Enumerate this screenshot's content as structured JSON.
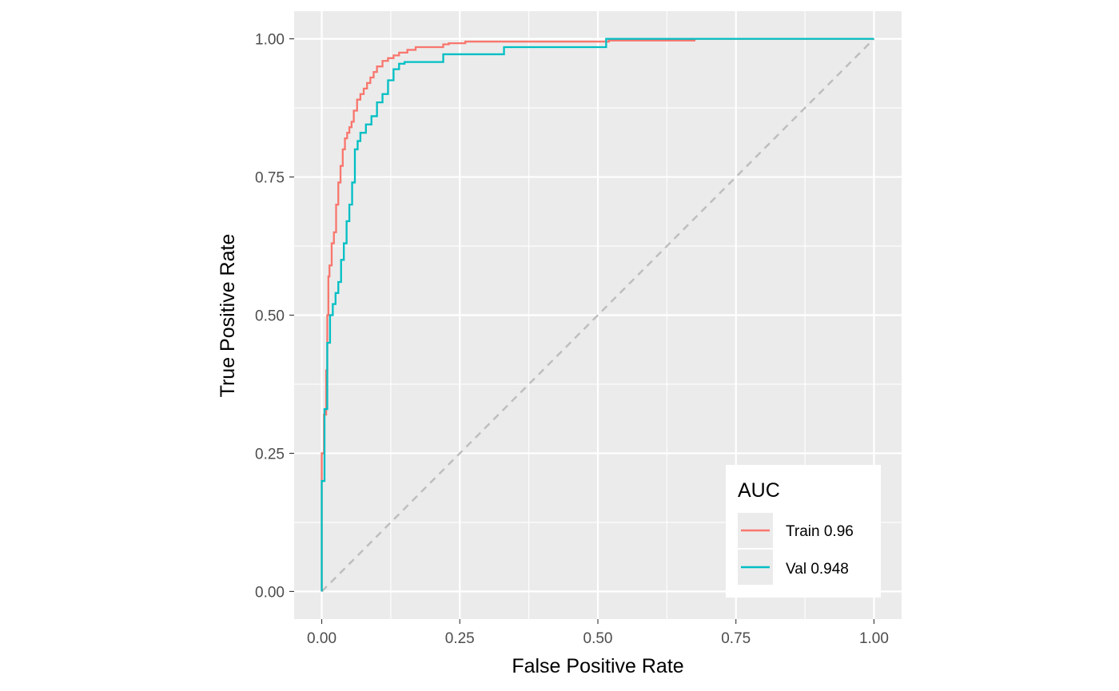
{
  "chart_data": {
    "type": "line",
    "title": "",
    "xlabel": "False Positive Rate",
    "ylabel": "True Positive Rate",
    "xlim": [
      -0.05,
      1.05
    ],
    "ylim": [
      -0.05,
      1.05
    ],
    "x_ticks": [
      0,
      0.25,
      0.5,
      0.75,
      1
    ],
    "x_tick_labels": [
      "0.00",
      "0.25",
      "0.50",
      "0.75",
      "1.00"
    ],
    "y_ticks": [
      0,
      0.25,
      0.5,
      0.75,
      1
    ],
    "y_tick_labels": [
      "0.00",
      "0.25",
      "0.50",
      "0.75",
      "1.00"
    ],
    "grid": true,
    "legend": {
      "title": "AUC",
      "position": "bottom-right"
    },
    "reference_line": {
      "x": [
        0,
        1
      ],
      "y": [
        0,
        1
      ],
      "style": "dashed",
      "color": "#bebebe"
    },
    "series": [
      {
        "name": "Train 0.96",
        "color": "#F8766D",
        "x": [
          0,
          0,
          0.004,
          0.004,
          0.008,
          0.008,
          0.01,
          0.01,
          0.012,
          0.012,
          0.014,
          0.014,
          0.018,
          0.018,
          0.022,
          0.022,
          0.026,
          0.026,
          0.03,
          0.03,
          0.034,
          0.034,
          0.038,
          0.038,
          0.042,
          0.042,
          0.046,
          0.046,
          0.05,
          0.05,
          0.054,
          0.054,
          0.058,
          0.058,
          0.064,
          0.064,
          0.07,
          0.07,
          0.076,
          0.076,
          0.082,
          0.082,
          0.088,
          0.088,
          0.094,
          0.094,
          0.1,
          0.1,
          0.11,
          0.11,
          0.12,
          0.12,
          0.13,
          0.13,
          0.14,
          0.14,
          0.155,
          0.155,
          0.17,
          0.17,
          0.22,
          0.22,
          0.23,
          0.23,
          0.26,
          0.26,
          0.52,
          0.52,
          0.675,
          0.675,
          1.0
        ],
        "y": [
          0,
          0.25,
          0.25,
          0.32,
          0.32,
          0.4,
          0.4,
          0.5,
          0.5,
          0.57,
          0.57,
          0.59,
          0.59,
          0.63,
          0.63,
          0.65,
          0.65,
          0.7,
          0.7,
          0.74,
          0.74,
          0.77,
          0.77,
          0.8,
          0.8,
          0.82,
          0.82,
          0.83,
          0.83,
          0.84,
          0.84,
          0.85,
          0.85,
          0.87,
          0.87,
          0.89,
          0.89,
          0.9,
          0.9,
          0.91,
          0.91,
          0.92,
          0.92,
          0.93,
          0.93,
          0.94,
          0.94,
          0.95,
          0.95,
          0.96,
          0.96,
          0.965,
          0.965,
          0.97,
          0.97,
          0.975,
          0.975,
          0.98,
          0.98,
          0.985,
          0.985,
          0.99,
          0.99,
          0.992,
          0.992,
          0.995,
          0.995,
          0.997,
          0.997,
          1.0,
          1.0
        ]
      },
      {
        "name": "Val 0.948",
        "color": "#00BFC4",
        "x": [
          0,
          0,
          0.005,
          0.005,
          0.01,
          0.01,
          0.015,
          0.015,
          0.02,
          0.02,
          0.025,
          0.025,
          0.03,
          0.03,
          0.035,
          0.035,
          0.04,
          0.04,
          0.045,
          0.045,
          0.05,
          0.05,
          0.055,
          0.055,
          0.06,
          0.06,
          0.065,
          0.065,
          0.07,
          0.07,
          0.08,
          0.08,
          0.09,
          0.09,
          0.1,
          0.1,
          0.11,
          0.11,
          0.12,
          0.12,
          0.13,
          0.13,
          0.14,
          0.14,
          0.15,
          0.15,
          0.22,
          0.22,
          0.33,
          0.33,
          0.515,
          0.515,
          1.0
        ],
        "y": [
          0,
          0.2,
          0.2,
          0.33,
          0.33,
          0.45,
          0.45,
          0.5,
          0.5,
          0.52,
          0.52,
          0.54,
          0.54,
          0.56,
          0.56,
          0.6,
          0.6,
          0.63,
          0.63,
          0.67,
          0.67,
          0.7,
          0.7,
          0.74,
          0.74,
          0.8,
          0.8,
          0.815,
          0.815,
          0.83,
          0.83,
          0.845,
          0.845,
          0.86,
          0.86,
          0.885,
          0.885,
          0.9,
          0.9,
          0.925,
          0.925,
          0.945,
          0.945,
          0.955,
          0.955,
          0.958,
          0.958,
          0.972,
          0.972,
          0.985,
          0.985,
          1.0,
          1.0
        ]
      }
    ]
  }
}
